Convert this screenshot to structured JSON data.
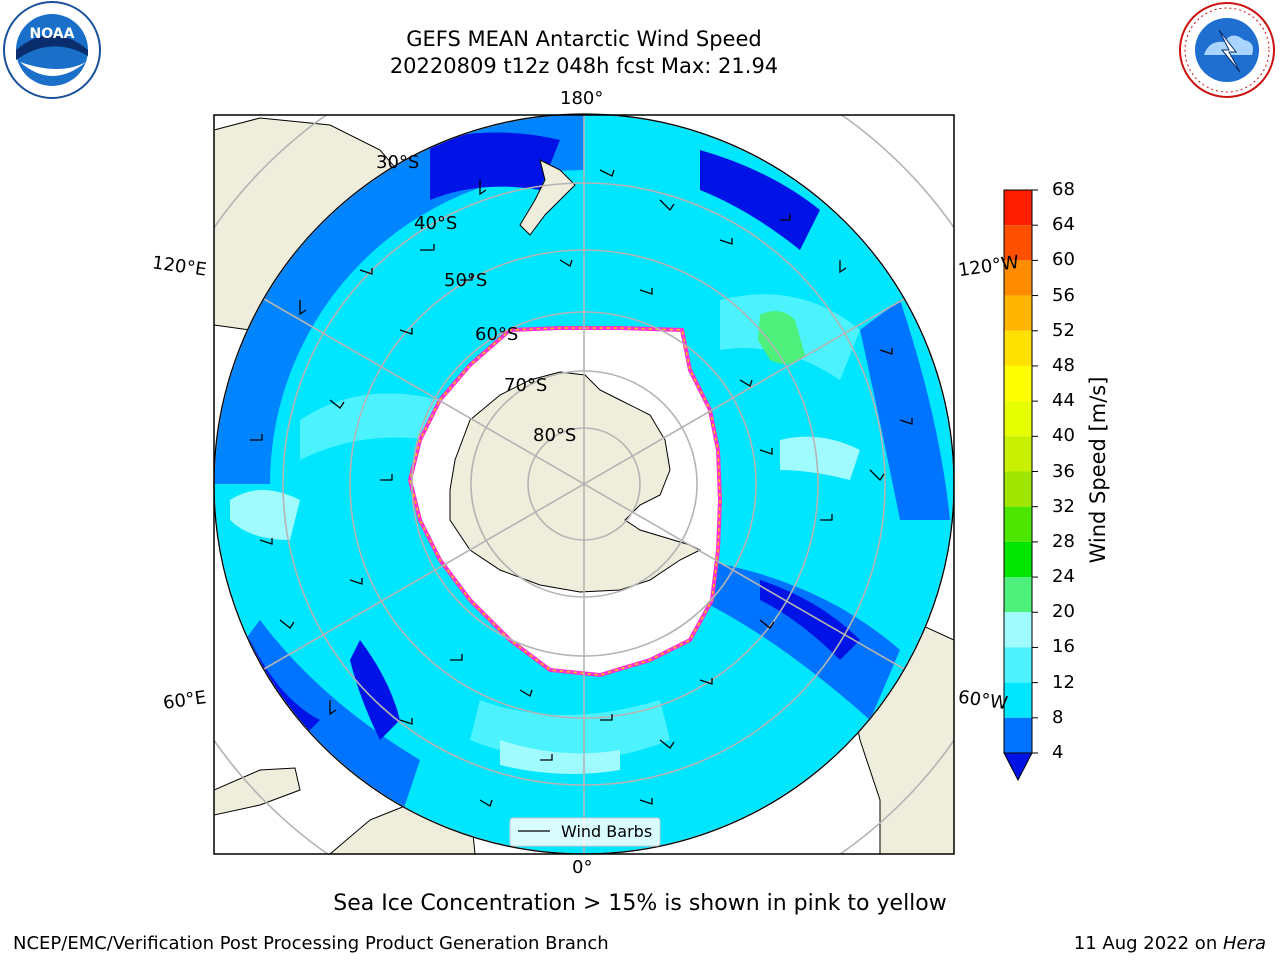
{
  "header": {
    "title_line1": "GEFS MEAN Antarctic Wind Speed",
    "title_line2": "20220809 t12z 048h fcst   Max: 21.94"
  },
  "map": {
    "projection": "south-polar-stereographic",
    "longitude_labels": {
      "top": "180°",
      "bottom": "0°",
      "upper_left": "120°E",
      "upper_right": "120°W",
      "lower_left": "60°E",
      "lower_right": "60°W"
    },
    "latitude_labels": [
      "30°S",
      "40°S",
      "50°S",
      "60°S",
      "70°S",
      "80°S"
    ],
    "legend_label": "Wind Barbs",
    "colors": {
      "land": "#efeedc",
      "ice_edge": "#ff33cc",
      "ice_edge_inner": "#ffcc00",
      "grid": "#b4b4b4",
      "level_lt4": "#0013e6",
      "level_4_8": "#0073ff",
      "level_8_12": "#00e6ff",
      "level_12_16": "#4cf3ff",
      "level_16_20": "#a0fbff",
      "level_20_24": "#4cf07a"
    }
  },
  "colorbar": {
    "label": "Wind Speed [m/s]",
    "ticks": [
      "4",
      "8",
      "12",
      "16",
      "20",
      "24",
      "28",
      "32",
      "36",
      "40",
      "44",
      "48",
      "52",
      "56",
      "60",
      "64",
      "68"
    ],
    "colors": [
      "#0073ff",
      "#00e6ff",
      "#4cf3ff",
      "#a0fbff",
      "#4cf07a",
      "#00e600",
      "#4ce600",
      "#a0e600",
      "#c8f000",
      "#e6ff00",
      "#ffff00",
      "#ffe000",
      "#ffb400",
      "#ff8c00",
      "#ff5000",
      "#ff1e00"
    ],
    "under_color": "#0013e6"
  },
  "logos": {
    "left_text": "NOAA",
    "right_text": "NATIONAL WEATHER SERVICE"
  },
  "caption": "Sea Ice Concentration > 15% is shown in pink to yellow",
  "footer": {
    "left": "NCEP/EMC/Verification Post Processing Product Generation Branch",
    "right_date": "11 Aug 2022 on ",
    "right_host": "Hera"
  }
}
